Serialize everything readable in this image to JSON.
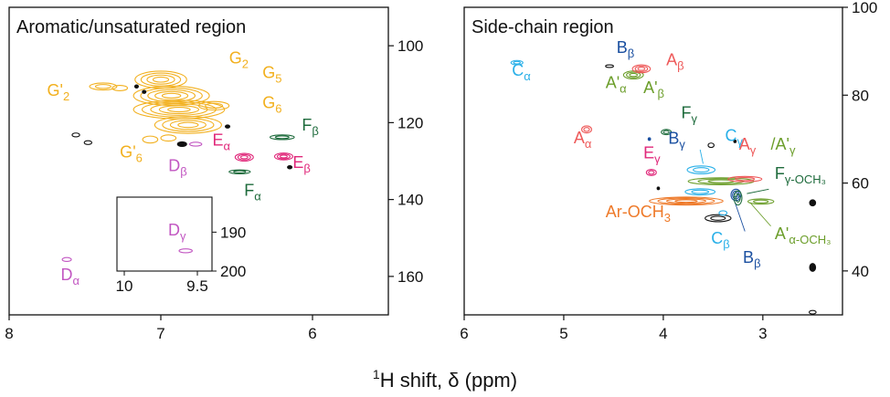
{
  "figure": {
    "xlabel_sup": "1",
    "xlabel_main": "H shift, δ (ppm)"
  },
  "colors": {
    "G": "#F2B01E",
    "D": "#C257C2",
    "E": "#E0287A",
    "F": "#1E6B3C",
    "A": "#EE5A5A",
    "A_prime": "#6C9E2B",
    "B": "#1A4FA0",
    "C": "#2AB0E8",
    "ArOCH3": "#EE7A2A",
    "unassigned": "#111111"
  },
  "chart_data": [
    {
      "type": "scatter",
      "title": "Aromatic/unsaturated region",
      "xlim": [
        8,
        5.5
      ],
      "ylim": [
        170,
        90
      ],
      "x_ticks": [
        "8",
        "7",
        "6"
      ],
      "x_tick_values": [
        8,
        7,
        6
      ],
      "y_ticks": [
        "100",
        "120",
        "140",
        "160"
      ],
      "y_tick_values": [
        100,
        120,
        140,
        160
      ],
      "grid": false,
      "peaks": [
        {
          "x": 7.0,
          "y": 108.8,
          "rx": 0.17,
          "ry": 2.2,
          "color": "G",
          "rings": 4
        },
        {
          "x": 6.93,
          "y": 113.0,
          "rx": 0.25,
          "ry": 2.5,
          "color": "G",
          "rings": 5
        },
        {
          "x": 6.88,
          "y": 116.6,
          "rx": 0.3,
          "ry": 2.4,
          "color": "G",
          "rings": 5
        },
        {
          "x": 6.82,
          "y": 120.6,
          "rx": 0.22,
          "ry": 2.2,
          "color": "G",
          "rings": 4
        },
        {
          "x": 6.65,
          "y": 115.6,
          "rx": 0.1,
          "ry": 1.1,
          "color": "G",
          "rings": 2
        },
        {
          "x": 7.38,
          "y": 110.6,
          "rx": 0.09,
          "ry": 0.9,
          "color": "G",
          "rings": 2
        },
        {
          "x": 7.27,
          "y": 111.0,
          "rx": 0.05,
          "ry": 0.7,
          "color": "G",
          "rings": 1
        },
        {
          "x": 7.07,
          "y": 124.4,
          "rx": 0.05,
          "ry": 0.9,
          "color": "G",
          "rings": 1
        },
        {
          "x": 6.95,
          "y": 124.0,
          "rx": 0.05,
          "ry": 0.8,
          "color": "G",
          "rings": 1
        },
        {
          "x": 6.86,
          "y": 125.6,
          "rx": 0.03,
          "ry": 0.6,
          "color": "unassigned",
          "rings": 1,
          "fill": true
        },
        {
          "x": 7.56,
          "y": 123.2,
          "rx": 0.025,
          "ry": 0.5,
          "color": "unassigned",
          "rings": 1
        },
        {
          "x": 7.48,
          "y": 125.2,
          "rx": 0.025,
          "ry": 0.5,
          "color": "unassigned",
          "rings": 1
        },
        {
          "x": 6.77,
          "y": 125.6,
          "rx": 0.04,
          "ry": 0.5,
          "color": "D",
          "rings": 1
        },
        {
          "x": 6.45,
          "y": 129.0,
          "rx": 0.06,
          "ry": 1.0,
          "color": "E",
          "rings": 3
        },
        {
          "x": 6.19,
          "y": 128.8,
          "rx": 0.06,
          "ry": 0.9,
          "color": "E",
          "rings": 3
        },
        {
          "x": 6.2,
          "y": 123.8,
          "rx": 0.08,
          "ry": 0.6,
          "color": "F",
          "rings": 2
        },
        {
          "x": 6.48,
          "y": 132.8,
          "rx": 0.07,
          "ry": 0.5,
          "color": "F",
          "rings": 2
        },
        {
          "x": 7.62,
          "y": 155.6,
          "rx": 0.03,
          "ry": 0.5,
          "color": "D",
          "rings": 1
        },
        {
          "x": 6.15,
          "y": 131.6,
          "rx": 0.015,
          "ry": 0.4,
          "color": "unassigned",
          "rings": 1,
          "fill": true
        },
        {
          "x": 6.56,
          "y": 121.0,
          "rx": 0.015,
          "ry": 0.4,
          "color": "unassigned",
          "rings": 1,
          "fill": true
        },
        {
          "x": 7.16,
          "y": 110.6,
          "rx": 0.012,
          "ry": 0.4,
          "color": "unassigned",
          "rings": 1,
          "fill": true
        },
        {
          "x": 7.11,
          "y": 112.0,
          "rx": 0.012,
          "ry": 0.4,
          "color": "unassigned",
          "rings": 1,
          "fill": true
        }
      ],
      "labels": [
        {
          "text": "G",
          "sub": "2",
          "prime": false,
          "x": 6.55,
          "y": 104.6,
          "color": "G"
        },
        {
          "text": "G",
          "sub": "5",
          "prime": false,
          "x": 6.33,
          "y": 108.4,
          "color": "G"
        },
        {
          "text": "G",
          "sub": "6",
          "prime": false,
          "x": 6.33,
          "y": 116.2,
          "color": "G"
        },
        {
          "text": "G",
          "sub": "2",
          "prime": true,
          "x": 7.75,
          "y": 113.0,
          "color": "G"
        },
        {
          "text": "G",
          "sub": "6",
          "prime": true,
          "x": 7.27,
          "y": 129.0,
          "color": "G"
        },
        {
          "text": "E",
          "sub": "α",
          "prime": false,
          "x": 6.66,
          "y": 126.0,
          "color": "E"
        },
        {
          "text": "E",
          "sub": "β",
          "prime": false,
          "x": 6.13,
          "y": 131.8,
          "color": "E"
        },
        {
          "text": "D",
          "sub": "β",
          "prime": false,
          "x": 6.95,
          "y": 132.6,
          "color": "D"
        },
        {
          "text": "F",
          "sub": "β",
          "prime": false,
          "x": 6.07,
          "y": 122.0,
          "color": "F"
        },
        {
          "text": "F",
          "sub": "α",
          "prime": false,
          "x": 6.45,
          "y": 139.0,
          "color": "F"
        },
        {
          "text": "D",
          "sub": "α",
          "prime": false,
          "x": 7.66,
          "y": 161.0,
          "color": "D"
        }
      ],
      "inset": {
        "xlim": [
          10.05,
          9.4
        ],
        "ylim": [
          181,
          200
        ],
        "x_ticks": [
          "10",
          "9.5"
        ],
        "x_tick_values": [
          10,
          9.5
        ],
        "y_ticks": [
          "190",
          "200"
        ],
        "y_tick_values": [
          190,
          200
        ],
        "peaks": [
          {
            "x": 9.58,
            "y": 194.8,
            "rx": 0.045,
            "ry": 0.5,
            "color": "D",
            "rings": 1
          }
        ],
        "labels": [
          {
            "text": "D",
            "sub": "γ",
            "prime": false,
            "x": 9.7,
            "y": 190.8,
            "color": "D"
          }
        ]
      }
    },
    {
      "type": "scatter",
      "title": "Side-chain region",
      "xlim": [
        6,
        2.2
      ],
      "ylim": [
        30,
        100
      ],
      "x_ticks": [
        "6",
        "5",
        "4",
        "3"
      ],
      "x_tick_values": [
        6,
        5,
        4,
        3
      ],
      "y_ticks": [
        "40",
        "60",
        "80",
        "100"
      ],
      "y_tick_values": [
        40,
        60,
        80,
        100
      ],
      "grid": false,
      "peaks": [
        {
          "x": 3.77,
          "y": 55.9,
          "rx": 0.37,
          "ry": 0.9,
          "color": "ArOCH3",
          "rings": 4
        },
        {
          "x": 3.27,
          "y": 57.3,
          "rx": 0.05,
          "ry": 1.3,
          "color": "B",
          "rings": 3
        },
        {
          "x": 3.25,
          "y": 56.6,
          "rx": 0.04,
          "ry": 1.6,
          "color": "F",
          "rings": 2
        },
        {
          "x": 3.02,
          "y": 55.8,
          "rx": 0.13,
          "ry": 0.6,
          "color": "A_prime",
          "rings": 2
        },
        {
          "x": 3.42,
          "y": 60.4,
          "rx": 0.33,
          "ry": 0.8,
          "color": "A_prime",
          "rings": 3
        },
        {
          "x": 3.18,
          "y": 60.9,
          "rx": 0.17,
          "ry": 0.6,
          "color": "A",
          "rings": 2
        },
        {
          "x": 3.63,
          "y": 58.0,
          "rx": 0.15,
          "ry": 0.7,
          "color": "C",
          "rings": 2
        },
        {
          "x": 3.62,
          "y": 63.0,
          "rx": 0.14,
          "ry": 0.9,
          "color": "C",
          "rings": 2
        },
        {
          "x": 3.45,
          "y": 52.0,
          "rx": 0.13,
          "ry": 0.8,
          "color": "unassigned",
          "rings": 2
        },
        {
          "x": 3.4,
          "y": 53.2,
          "rx": 0.04,
          "ry": 0.5,
          "color": "C",
          "rings": 1
        },
        {
          "x": 4.12,
          "y": 62.4,
          "rx": 0.05,
          "ry": 0.7,
          "color": "E",
          "rings": 2
        },
        {
          "x": 4.77,
          "y": 72.2,
          "rx": 0.05,
          "ry": 0.8,
          "color": "A",
          "rings": 2
        },
        {
          "x": 3.97,
          "y": 71.6,
          "rx": 0.05,
          "ry": 0.6,
          "color": "F",
          "rings": 2
        },
        {
          "x": 3.52,
          "y": 68.6,
          "rx": 0.03,
          "ry": 0.5,
          "color": "unassigned",
          "rings": 1
        },
        {
          "x": 4.3,
          "y": 84.6,
          "rx": 0.1,
          "ry": 0.9,
          "color": "A_prime",
          "rings": 3
        },
        {
          "x": 4.22,
          "y": 86.0,
          "rx": 0.09,
          "ry": 0.9,
          "color": "A",
          "rings": 3
        },
        {
          "x": 4.54,
          "y": 86.6,
          "rx": 0.04,
          "ry": 0.3,
          "color": "unassigned",
          "rings": 1
        },
        {
          "x": 5.47,
          "y": 87.4,
          "rx": 0.06,
          "ry": 0.5,
          "color": "C",
          "rings": 2
        },
        {
          "x": 2.5,
          "y": 40.8,
          "rx": 0.03,
          "ry": 0.9,
          "color": "unassigned",
          "rings": 1,
          "fill": true
        },
        {
          "x": 2.5,
          "y": 55.5,
          "rx": 0.03,
          "ry": 0.7,
          "color": "unassigned",
          "rings": 1,
          "fill": true
        },
        {
          "x": 2.5,
          "y": 30.6,
          "rx": 0.035,
          "ry": 0.4,
          "color": "unassigned",
          "rings": 1
        },
        {
          "x": 3.28,
          "y": 69.5,
          "rx": 0.012,
          "ry": 0.3,
          "color": "unassigned",
          "rings": 1,
          "fill": true
        },
        {
          "x": 4.14,
          "y": 70.0,
          "rx": 0.012,
          "ry": 0.3,
          "color": "B",
          "rings": 1,
          "fill": true
        },
        {
          "x": 4.05,
          "y": 58.8,
          "rx": 0.012,
          "ry": 0.3,
          "color": "unassigned",
          "rings": 1,
          "fill": true
        }
      ],
      "labels": [
        {
          "text": "Ar-OCH",
          "sub": "3",
          "prime": false,
          "x": 4.58,
          "y": 52.2,
          "color": "ArOCH3"
        },
        {
          "text": "C",
          "sub": "β",
          "prime": false,
          "x": 3.52,
          "y": 46.2,
          "color": "C"
        },
        {
          "text": "B",
          "sub": "β",
          "prime": false,
          "x": 3.2,
          "y": 41.8,
          "color": "B"
        },
        {
          "text": "A'",
          "sub": "α-OCH₃",
          "prime": false,
          "x": 2.88,
          "y": 47.2,
          "color": "A_prime"
        },
        {
          "text": "F",
          "sub": "γ-OCH₃",
          "prime": false,
          "x": 2.88,
          "y": 61.0,
          "color": "F"
        },
        {
          "text": "E",
          "sub": "γ",
          "prime": false,
          "x": 4.2,
          "y": 65.6,
          "color": "E"
        },
        {
          "text": "A",
          "sub": "γ",
          "prime": false,
          "x": 3.24,
          "y": 67.6,
          "color": "A"
        },
        {
          "text": "/A'",
          "sub": "γ",
          "prime": false,
          "x": 2.92,
          "y": 67.6,
          "color": "A_prime"
        },
        {
          "text": "C",
          "sub": "γ",
          "prime": false,
          "x": 3.38,
          "y": 69.6,
          "color": "C"
        },
        {
          "text": "B",
          "sub": "γ",
          "prime": false,
          "x": 3.95,
          "y": 68.9,
          "color": "B"
        },
        {
          "text": "A",
          "sub": "α",
          "prime": false,
          "x": 4.9,
          "y": 69.0,
          "color": "A"
        },
        {
          "text": "F",
          "sub": "γ",
          "prime": false,
          "x": 3.82,
          "y": 74.8,
          "color": "F"
        },
        {
          "text": "A'",
          "sub": "α",
          "prime": false,
          "x": 4.58,
          "y": 81.6,
          "color": "A_prime"
        },
        {
          "text": "A'",
          "sub": "β",
          "prime": false,
          "x": 4.2,
          "y": 80.5,
          "color": "A_prime"
        },
        {
          "text": "A",
          "sub": "β",
          "prime": false,
          "x": 3.97,
          "y": 86.8,
          "color": "A"
        },
        {
          "text": "B",
          "sub": "β",
          "prime": false,
          "x": 4.47,
          "y": 89.6,
          "color": "B"
        },
        {
          "text": "C",
          "sub": "α",
          "prime": false,
          "x": 5.52,
          "y": 84.4,
          "color": "C"
        }
      ],
      "leaders": [
        {
          "x1": 3.18,
          "y1": 49.0,
          "x2": 3.28,
          "y2": 55.6,
          "color": "B"
        },
        {
          "x1": 2.92,
          "y1": 50.2,
          "x2": 3.13,
          "y2": 55.6,
          "color": "A_prime"
        },
        {
          "x1": 2.94,
          "y1": 58.6,
          "x2": 3.16,
          "y2": 57.6,
          "color": "F"
        },
        {
          "x1": 3.63,
          "y1": 67.6,
          "x2": 3.6,
          "y2": 64.4,
          "color": "C"
        }
      ]
    }
  ]
}
